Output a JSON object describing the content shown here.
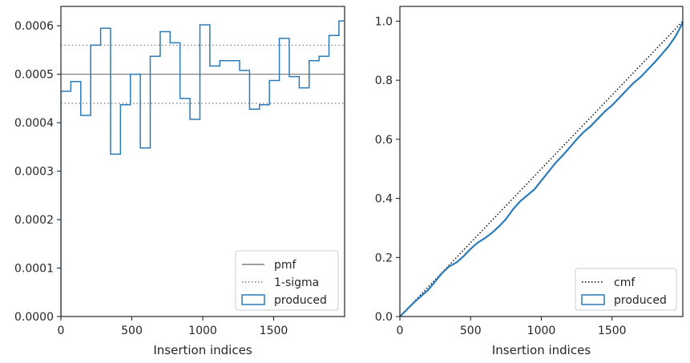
{
  "chart_data": [
    {
      "type": "step",
      "xlabel": "Insertion indices",
      "ylabel": "",
      "xlim": [
        0,
        2000
      ],
      "ylim": [
        0,
        0.00064
      ],
      "xticks": [
        0,
        500,
        1000,
        1500
      ],
      "xtick_labels": [
        "0",
        "500",
        "1000",
        "1500"
      ],
      "yticks": [
        0,
        0.0001,
        0.0002,
        0.0003,
        0.0004,
        0.0005,
        0.0006
      ],
      "ytick_labels": [
        "0.0000",
        "0.0001",
        "0.0002",
        "0.0003",
        "0.0004",
        "0.0005",
        "0.0006"
      ],
      "grid": false,
      "legend_position": "lower-right",
      "reference_lines": [
        {
          "name": "pmf",
          "y": 0.0005,
          "style": "solid",
          "color": "#808080"
        },
        {
          "name": "1-sigma",
          "y": [
            0.00044,
            0.00056
          ],
          "style": "dotted",
          "color": "#808080"
        }
      ],
      "series": [
        {
          "name": "produced",
          "color": "#2b7bba",
          "bin_width": 70,
          "bin_starts": [
            0,
            70,
            140,
            210,
            280,
            350,
            420,
            490,
            560,
            630,
            700,
            770,
            840,
            910,
            980,
            1050,
            1120,
            1190,
            1260,
            1330,
            1400,
            1470,
            1540,
            1610,
            1680,
            1750,
            1820,
            1890,
            1960
          ],
          "values": [
            0.000465,
            0.000485,
            0.000415,
            0.00056,
            0.000595,
            0.000335,
            0.000437,
            0.0005,
            0.000348,
            0.000537,
            0.000588,
            0.000565,
            0.00045,
            0.000407,
            0.000602,
            0.000517,
            0.000528,
            0.000528,
            0.000508,
            0.000428,
            0.000437,
            0.000487,
            0.000574,
            0.000495,
            0.000472,
            0.000528,
            0.000537,
            0.00058,
            0.00061
          ]
        }
      ],
      "legend": [
        "pmf",
        "1-sigma",
        "produced"
      ]
    },
    {
      "type": "line",
      "xlabel": "Insertion indices",
      "ylabel": "",
      "xlim": [
        0,
        2000
      ],
      "ylim": [
        0,
        1.05
      ],
      "xticks": [
        0,
        500,
        1000,
        1500
      ],
      "xtick_labels": [
        "0",
        "500",
        "1000",
        "1500"
      ],
      "yticks": [
        0,
        0.2,
        0.4,
        0.6,
        0.8,
        1.0
      ],
      "ytick_labels": [
        "0.0",
        "0.2",
        "0.4",
        "0.6",
        "0.8",
        "1.0"
      ],
      "grid": false,
      "legend_position": "lower-right",
      "series": [
        {
          "name": "cmf",
          "style": "dotted",
          "color": "#000000",
          "x": [
            0,
            2000
          ],
          "y": [
            0,
            1.0
          ]
        },
        {
          "name": "produced",
          "style": "solid",
          "color": "#2b7bba",
          "x": [
            0,
            100,
            200,
            300,
            350,
            400,
            450,
            500,
            550,
            600,
            650,
            700,
            750,
            800,
            850,
            900,
            950,
            1000,
            1050,
            1100,
            1150,
            1200,
            1250,
            1300,
            1350,
            1400,
            1450,
            1500,
            1550,
            1600,
            1650,
            1700,
            1750,
            1800,
            1850,
            1900,
            1950,
            2000
          ],
          "y": [
            0,
            0.048,
            0.09,
            0.148,
            0.17,
            0.183,
            0.204,
            0.229,
            0.25,
            0.265,
            0.283,
            0.305,
            0.33,
            0.363,
            0.39,
            0.41,
            0.43,
            0.46,
            0.49,
            0.52,
            0.545,
            0.572,
            0.6,
            0.625,
            0.645,
            0.67,
            0.695,
            0.715,
            0.74,
            0.765,
            0.79,
            0.81,
            0.835,
            0.86,
            0.887,
            0.915,
            0.95,
            0.995
          ]
        }
      ],
      "legend": [
        "cmf",
        "produced"
      ]
    }
  ]
}
